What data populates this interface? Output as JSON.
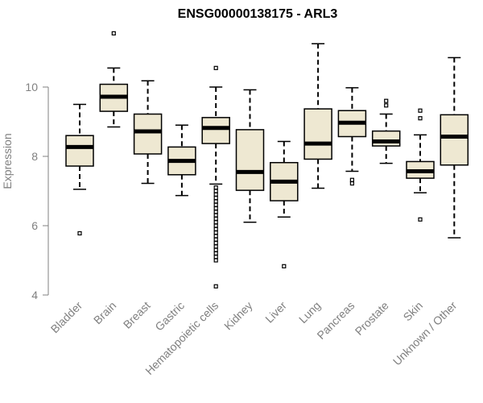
{
  "chart_data": {
    "type": "box",
    "title": "ENSG00000138175 - ARL3",
    "xlabel": "",
    "ylabel": "Expression",
    "ylim": [
      4,
      11.7
    ],
    "yticks": [
      4,
      6,
      8,
      10
    ],
    "colors": {
      "box_fill": "#eee8d2",
      "stroke": "#000000",
      "axis": "#808080"
    },
    "categories": [
      "Bladder",
      "Brain",
      "Breast",
      "Gastric",
      "Hematopoietic cells",
      "Kidney",
      "Liver",
      "Lung",
      "Pancreas",
      "Prostate",
      "Skin",
      "Unknown / Other"
    ],
    "boxes": [
      {
        "whisker_low": 7.05,
        "q1": 7.72,
        "median": 8.27,
        "q3": 8.6,
        "whisker_high": 9.5,
        "outliers": [
          5.78
        ]
      },
      {
        "whisker_low": 8.85,
        "q1": 9.3,
        "median": 9.72,
        "q3": 10.08,
        "whisker_high": 10.55,
        "outliers": [
          11.55
        ]
      },
      {
        "whisker_low": 7.22,
        "q1": 8.07,
        "median": 8.72,
        "q3": 9.22,
        "whisker_high": 10.18,
        "outliers": []
      },
      {
        "whisker_low": 6.87,
        "q1": 7.47,
        "median": 7.87,
        "q3": 8.27,
        "whisker_high": 8.9,
        "outliers": []
      },
      {
        "whisker_low": 7.2,
        "q1": 8.37,
        "median": 8.82,
        "q3": 9.12,
        "whisker_high": 10.0,
        "outliers": [
          10.55,
          7.1,
          7.0,
          6.9,
          6.8,
          6.7,
          6.6,
          6.5,
          6.4,
          6.3,
          6.2,
          6.1,
          6.0,
          5.9,
          5.8,
          5.7,
          5.6,
          5.5,
          5.4,
          5.3,
          5.2,
          5.1,
          5.0,
          4.25
        ]
      },
      {
        "whisker_low": 6.1,
        "q1": 7.02,
        "median": 7.55,
        "q3": 8.77,
        "whisker_high": 9.92,
        "outliers": []
      },
      {
        "whisker_low": 6.25,
        "q1": 6.72,
        "median": 7.27,
        "q3": 7.82,
        "whisker_high": 8.43,
        "outliers": [
          4.83
        ]
      },
      {
        "whisker_low": 7.08,
        "q1": 7.92,
        "median": 8.37,
        "q3": 9.37,
        "whisker_high": 11.25,
        "outliers": []
      },
      {
        "whisker_low": 7.57,
        "q1": 8.57,
        "median": 8.97,
        "q3": 9.32,
        "whisker_high": 9.98,
        "outliers": [
          7.32,
          7.22
        ]
      },
      {
        "whisker_low": 7.8,
        "q1": 8.3,
        "median": 8.43,
        "q3": 8.73,
        "whisker_high": 9.22,
        "outliers": [
          9.6,
          9.47
        ]
      },
      {
        "whisker_low": 6.95,
        "q1": 7.37,
        "median": 7.57,
        "q3": 7.85,
        "whisker_high": 8.62,
        "outliers": [
          9.32,
          9.1,
          6.18
        ]
      },
      {
        "whisker_low": 5.65,
        "q1": 7.75,
        "median": 8.57,
        "q3": 9.2,
        "whisker_high": 10.85,
        "outliers": []
      }
    ]
  }
}
